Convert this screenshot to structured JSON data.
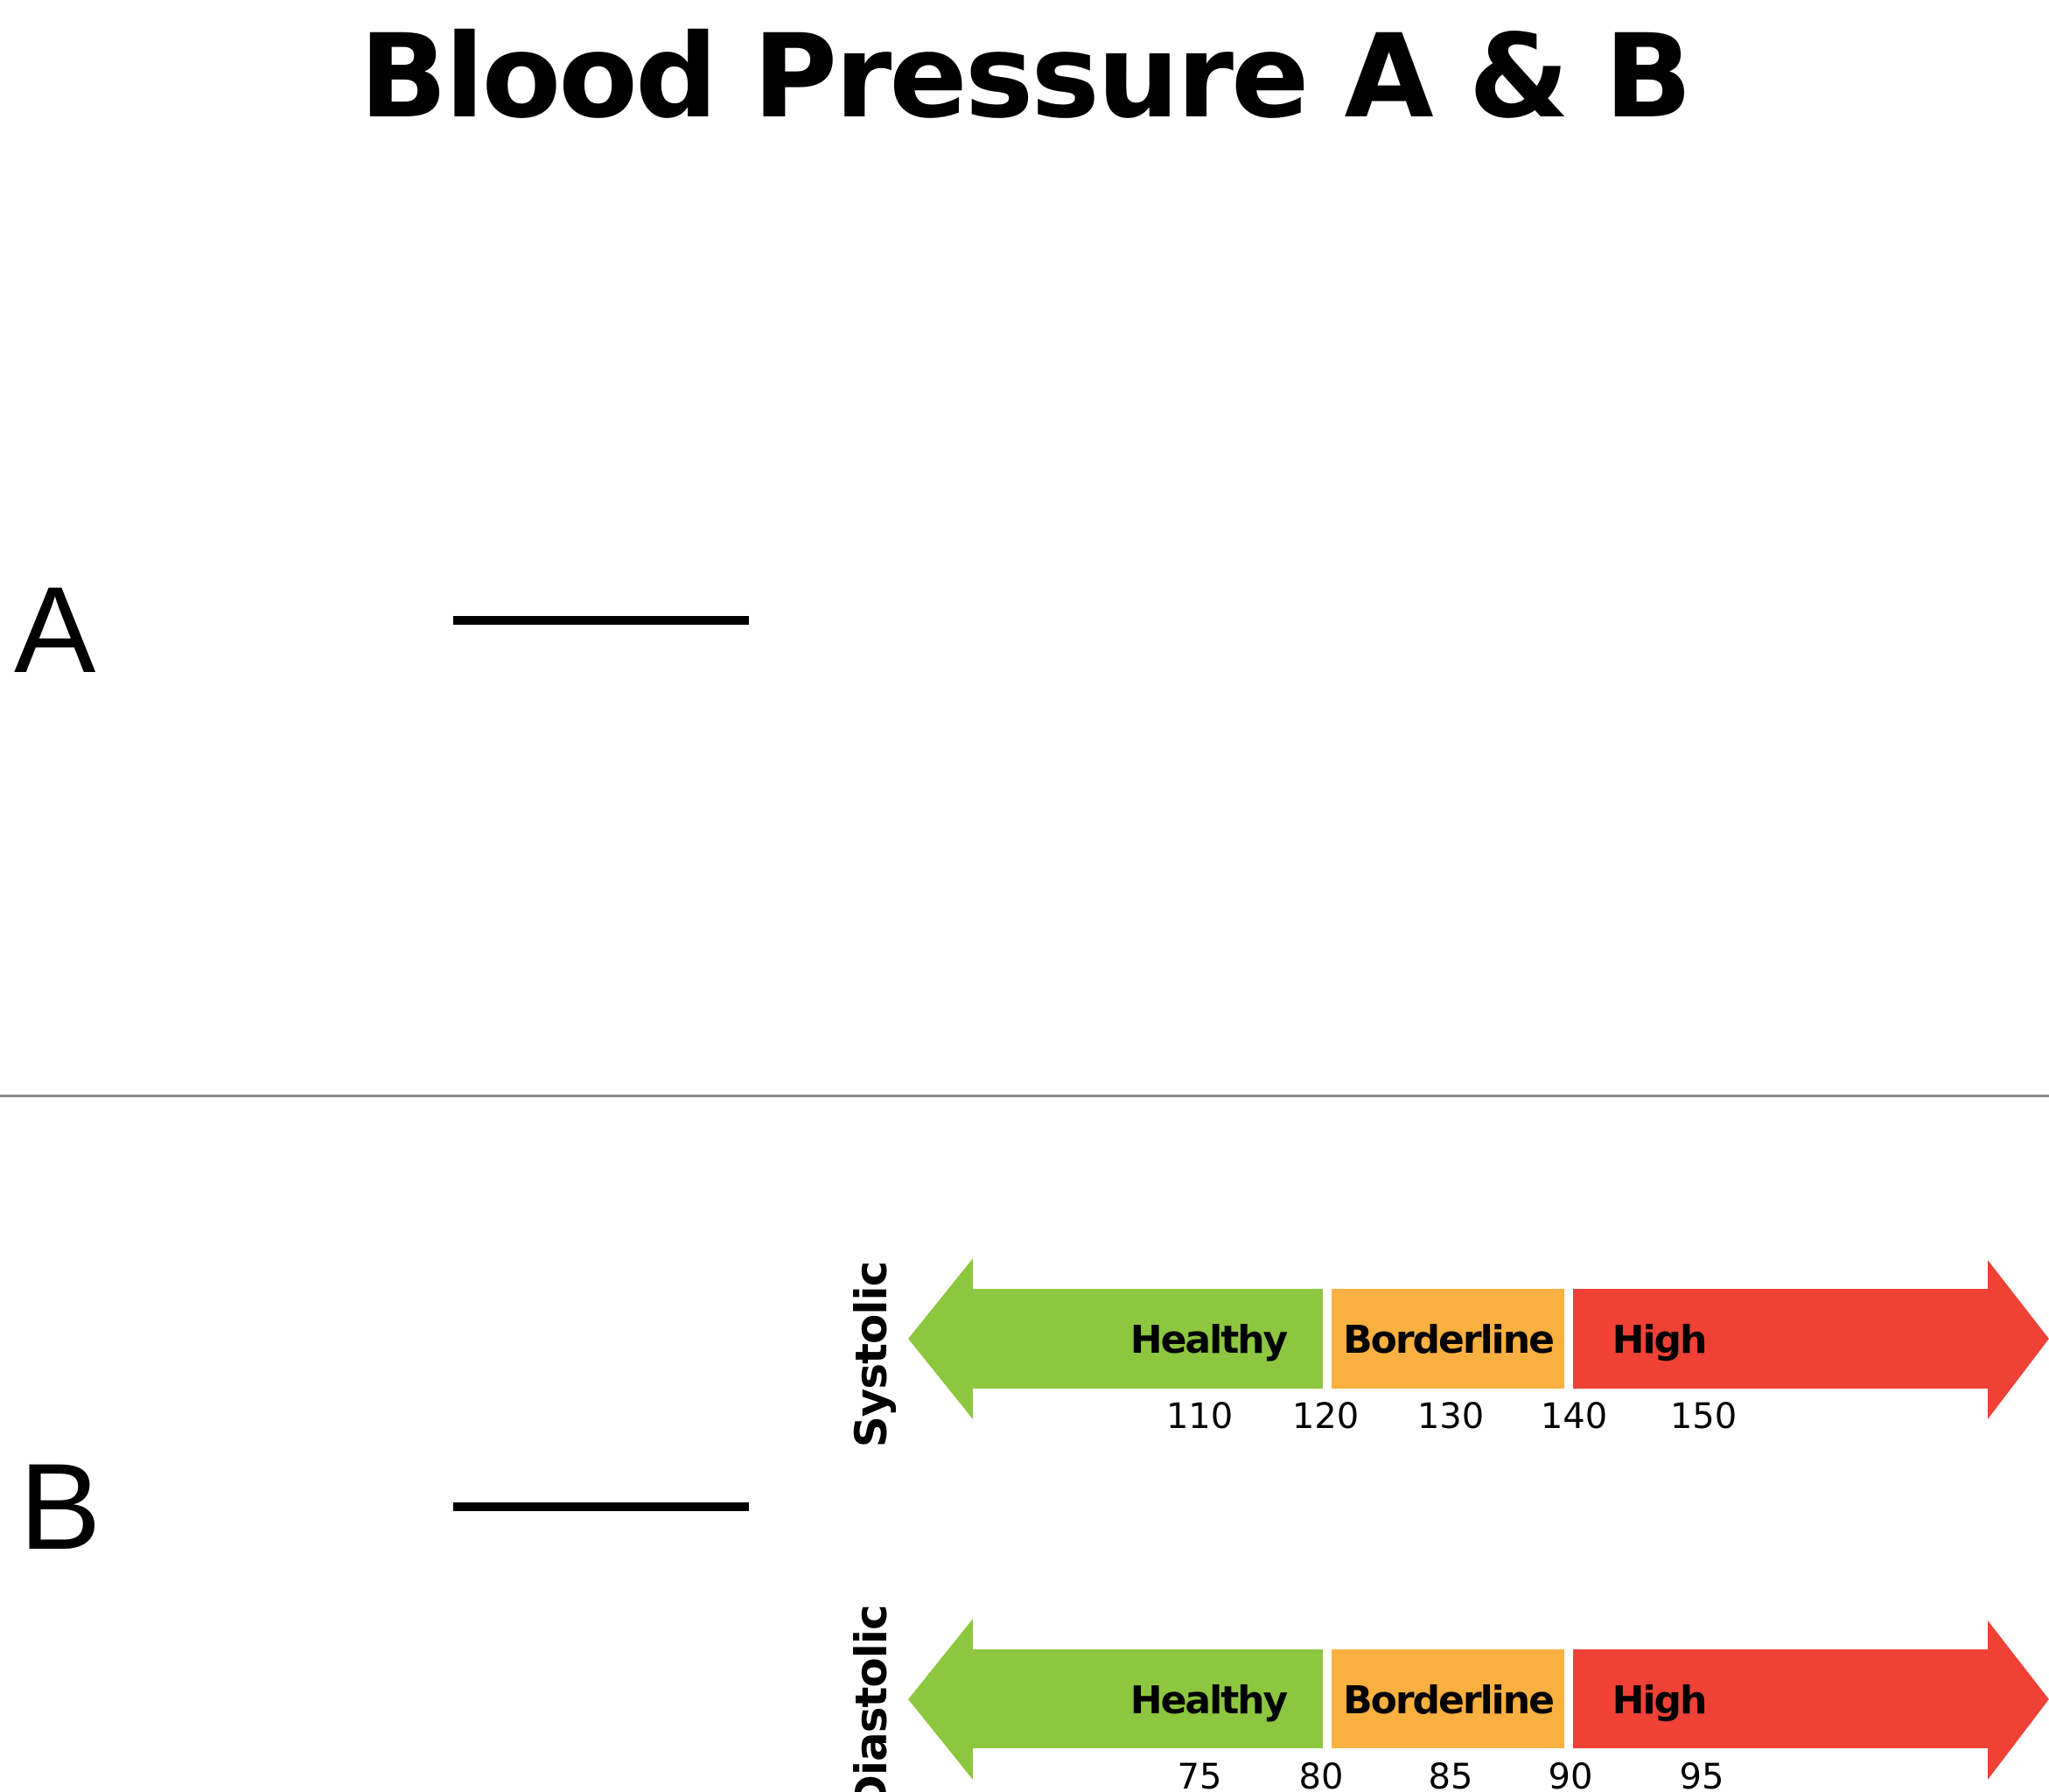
{
  "title": "Blood Pressure A & B",
  "rows": [
    {
      "label": "A",
      "answer": ""
    },
    {
      "label": "B",
      "answer": ""
    }
  ],
  "colors": {
    "healthy": "#8dc63f",
    "borderline": "#f9b040",
    "high": "#ef4136",
    "divider": "#8a8a8a"
  },
  "scales": [
    {
      "name": "Systolic",
      "zones": [
        {
          "label": "Healthy",
          "color": "#8dc63f"
        },
        {
          "label": "Borderline",
          "color": "#f9b040"
        },
        {
          "label": "High",
          "color": "#ef4136"
        }
      ],
      "ticks": [
        "110",
        "120",
        "130",
        "140",
        "150"
      ]
    },
    {
      "name": "Diastolic",
      "zones": [
        {
          "label": "Healthy",
          "color": "#8dc63f"
        },
        {
          "label": "Borderline",
          "color": "#f9b040"
        },
        {
          "label": "High",
          "color": "#ef4136"
        }
      ],
      "ticks": [
        "75",
        "80",
        "85",
        "90",
        "95"
      ]
    }
  ]
}
